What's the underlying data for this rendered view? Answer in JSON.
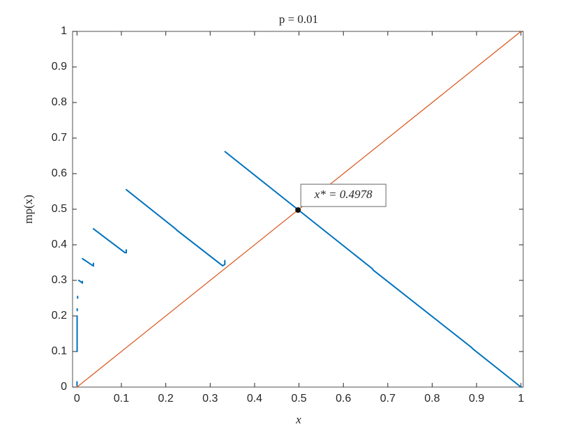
{
  "chart_data": {
    "type": "line",
    "title": "p = 0.01",
    "xlabel": "x",
    "ylabel": "mp(x)",
    "xlim": [
      -0.01,
      1.005
    ],
    "ylim": [
      0,
      1
    ],
    "xticks": [
      0,
      0.1,
      0.2,
      0.3,
      0.4,
      0.5,
      0.6,
      0.7,
      0.8,
      0.9,
      1
    ],
    "yticks": [
      0,
      0.1,
      0.2,
      0.3,
      0.4,
      0.5,
      0.6,
      0.7,
      0.8,
      0.9,
      1
    ],
    "series": [
      {
        "color": "#0072bd",
        "x": [
          0.3333,
          0.665,
          0.667,
          0.889,
          0.891,
          1,
          null,
          0.111,
          0.222,
          0.225,
          0.328,
          0.333,
          0.333,
          null,
          0.037,
          0.074,
          0.108,
          0.111,
          0.111,
          null,
          0.0123,
          0.035,
          0.037,
          0.037,
          null,
          0.004,
          0.012,
          0.0123,
          null,
          0.0014,
          0.0014,
          null,
          0.0005,
          0.0005,
          null,
          0.0003,
          0.0003,
          null,
          0,
          0
        ],
        "values": [
          0.662,
          0.333,
          0.329,
          0.111,
          0.108,
          0,
          null,
          0.555,
          0.445,
          0.441,
          0.341,
          0.345,
          0.356,
          null,
          0.445,
          0.41,
          0.378,
          0.378,
          0.386,
          null,
          0.361,
          0.342,
          0.341,
          0.348,
          null,
          0.3,
          0.293,
          0.297,
          null,
          0.25,
          0.255,
          null,
          0.215,
          0.22,
          null,
          0.1,
          0.2,
          null,
          0.005,
          0.015
        ]
      },
      {
        "color": "#d95319",
        "x": [
          0,
          1
        ],
        "values": [
          0,
          1
        ]
      }
    ],
    "annotation": {
      "text": "x* = 0.4978",
      "x": 0.4978,
      "y": 0.4978
    }
  }
}
